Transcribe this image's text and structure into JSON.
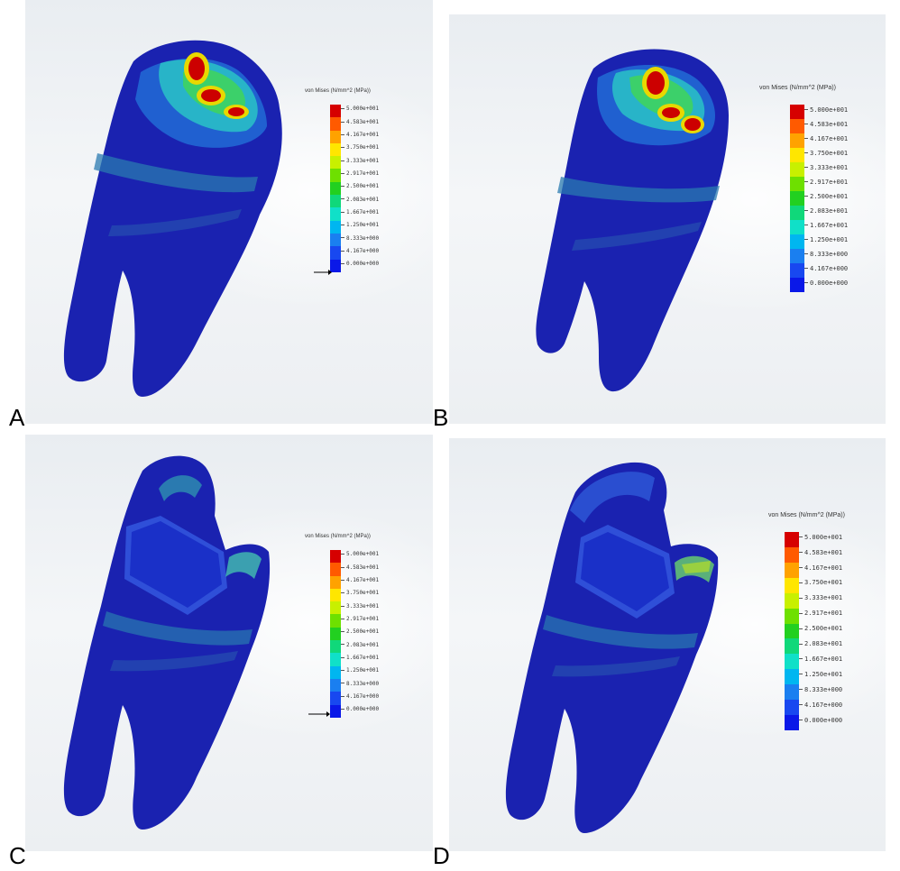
{
  "figure": {
    "panel_labels": [
      "A",
      "B",
      "C",
      "D"
    ],
    "legend": {
      "title": "von Mises (N/mm^2 (MPa))",
      "values": [
        "5.000e+001",
        "4.583e+001",
        "4.167e+001",
        "3.750e+001",
        "3.333e+001",
        "2.917e+001",
        "2.500e+001",
        "2.083e+001",
        "1.667e+001",
        "1.250e+001",
        "8.333e+000",
        "4.167e+000",
        "0.000e+000"
      ],
      "colors": [
        "#d60000",
        "#ff5a00",
        "#ffa200",
        "#ffe600",
        "#c8f000",
        "#6ee000",
        "#22d020",
        "#10d87a",
        "#10e0c8",
        "#00b6f0",
        "#1a7ff0",
        "#1848f0",
        "#0a18e8"
      ]
    }
  }
}
